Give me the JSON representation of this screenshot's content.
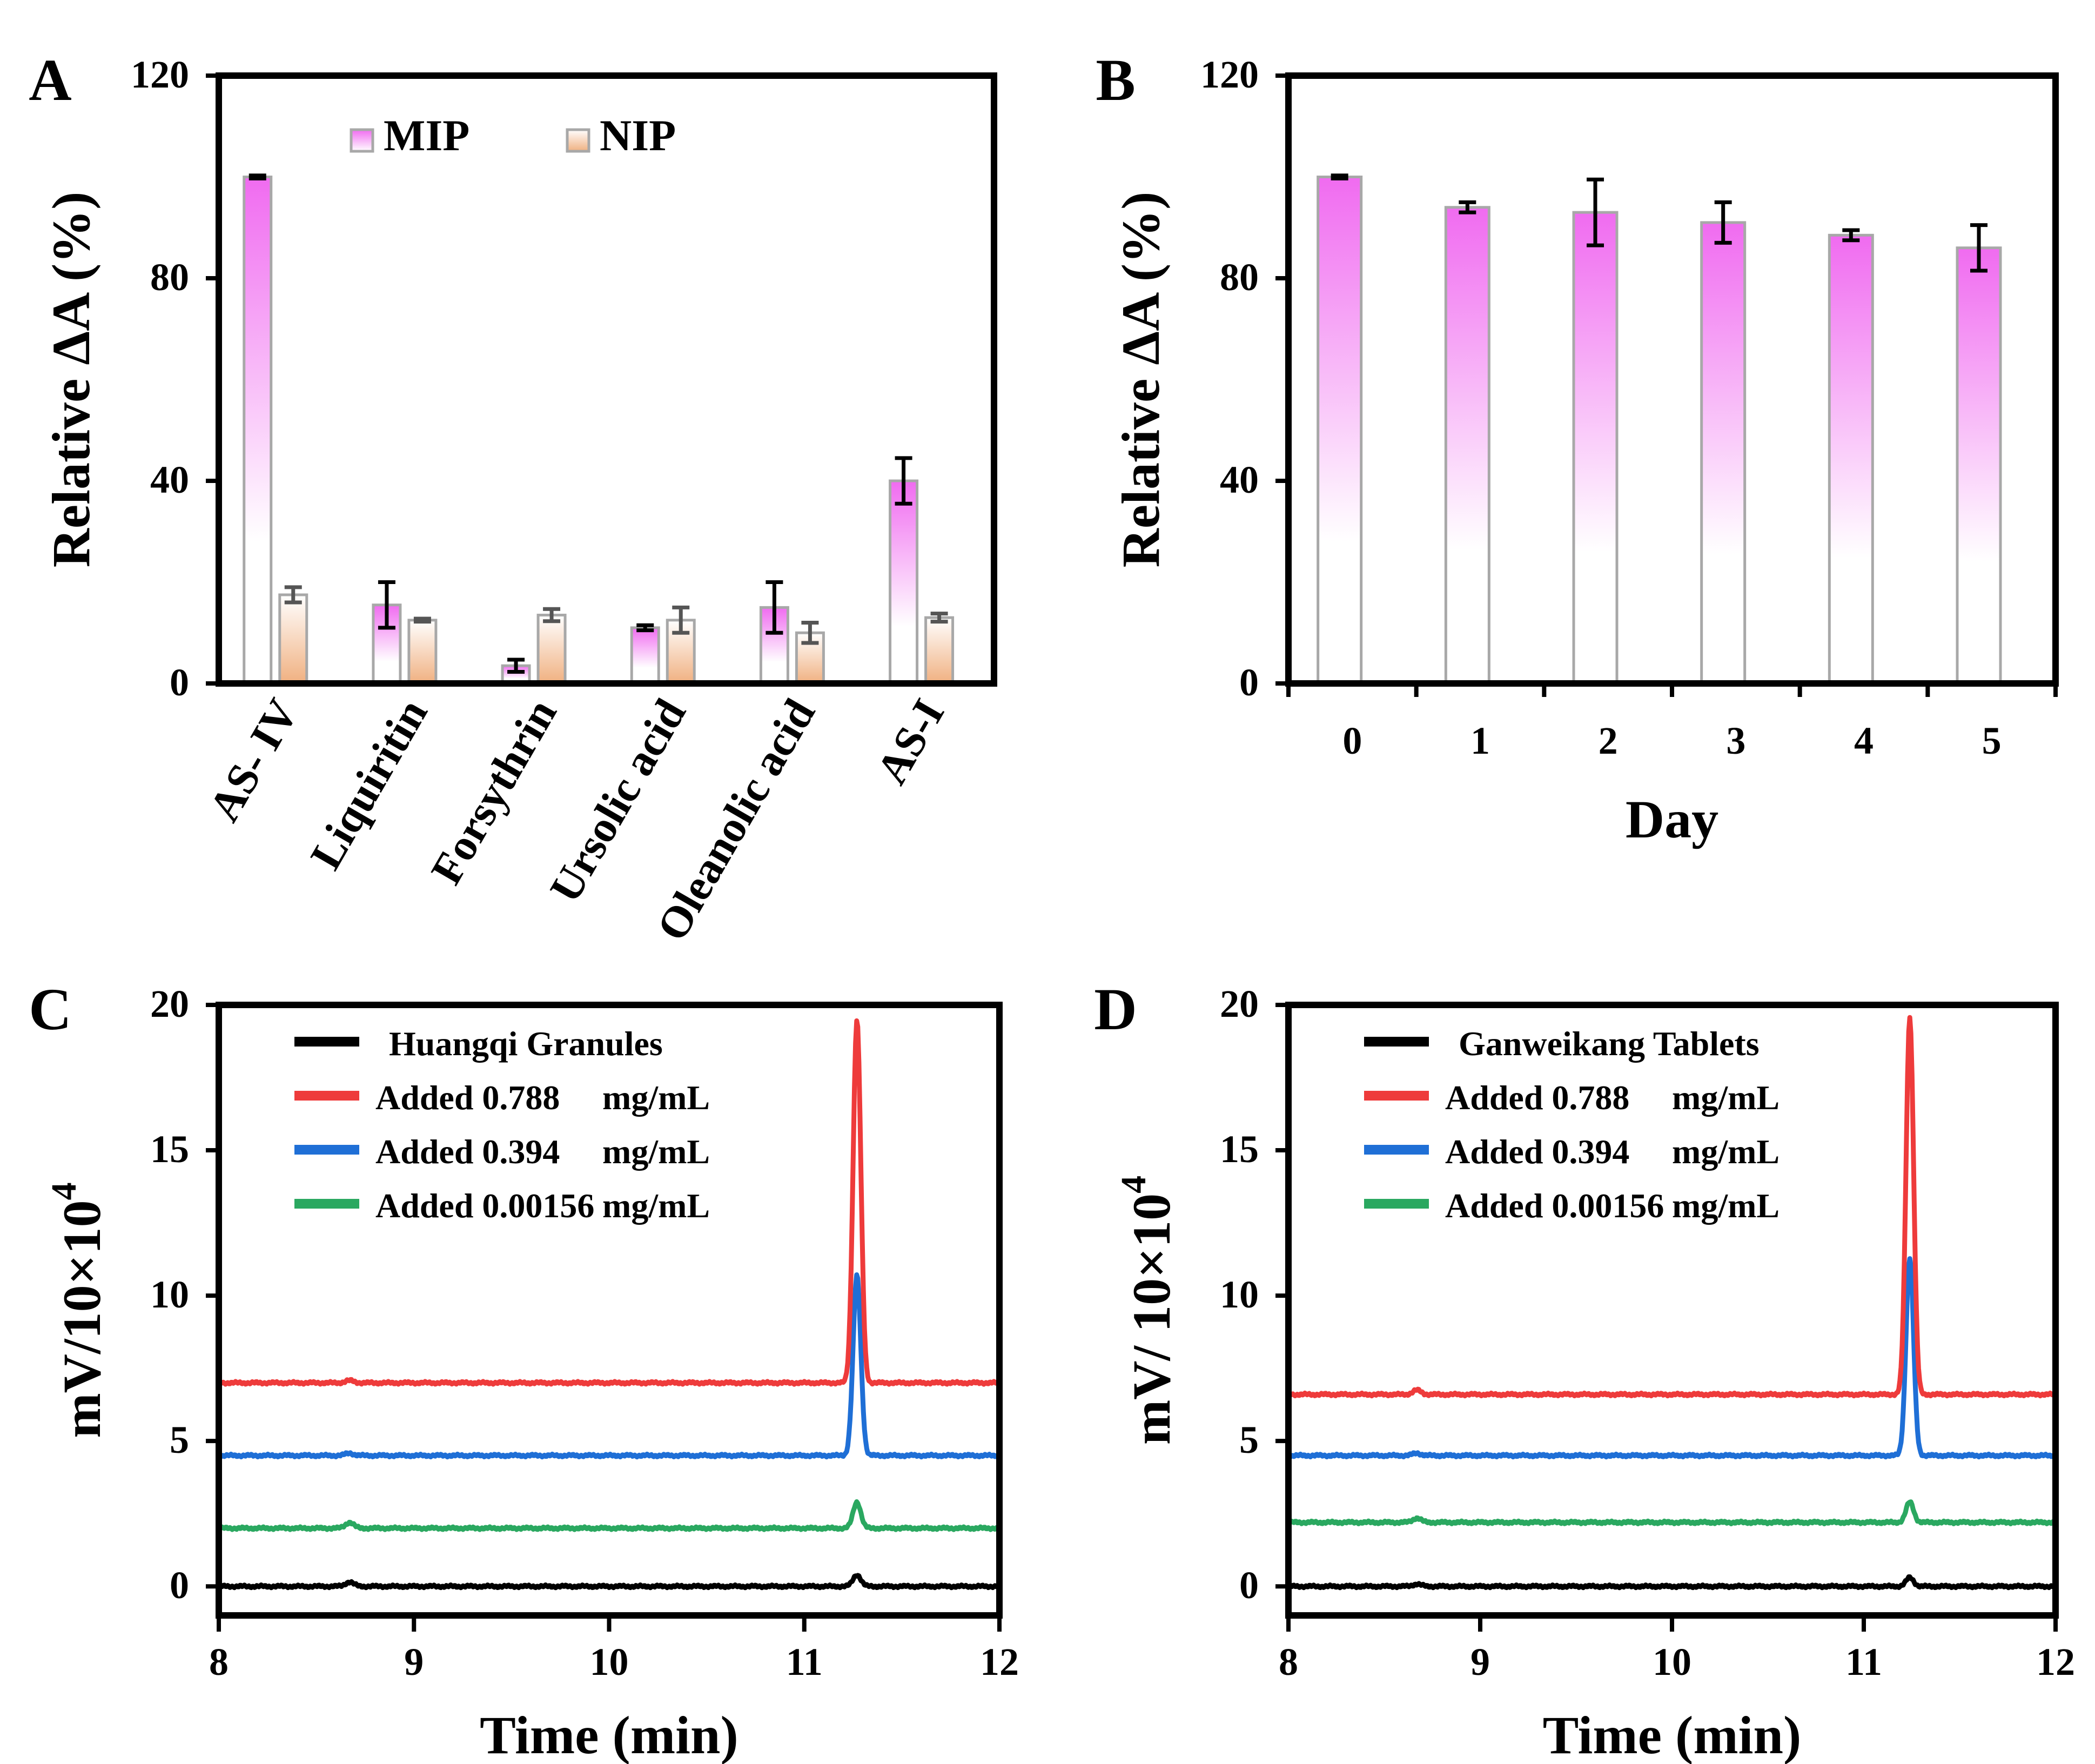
{
  "chart_data": [
    {
      "panel": "A",
      "type": "bar",
      "ylabel": "Relative ΔA (%)",
      "ylim": [
        0,
        120
      ],
      "yticks": [
        0,
        40,
        80,
        120
      ],
      "categories": [
        "AS- IV",
        "Liquiritin",
        "Forsythrin",
        "Ursolic acid",
        "Oleanolic acid",
        "AS-I"
      ],
      "series": [
        {
          "name": "MIP",
          "color": "#f06bf0",
          "values": [
            100,
            15.5,
            3.5,
            11,
            15,
            40
          ],
          "errors": [
            0.3,
            4.5,
            1.2,
            0.5,
            5,
            4.5
          ]
        },
        {
          "name": "NIP",
          "color": "#f2b98a",
          "values": [
            17.5,
            12.5,
            13.5,
            12.5,
            10,
            13
          ],
          "errors": [
            1.5,
            0.3,
            1.2,
            2.5,
            2,
            0.8
          ]
        }
      ],
      "legend_position": "top-center"
    },
    {
      "panel": "B",
      "type": "bar",
      "xlabel": "Day",
      "ylabel": "Relative ΔA (%)",
      "ylim": [
        0,
        120
      ],
      "yticks": [
        0,
        40,
        80,
        120
      ],
      "categories": [
        "0",
        "1",
        "2",
        "3",
        "4",
        "5"
      ],
      "series": [
        {
          "name": "MIP",
          "color": "#f06bf0",
          "values": [
            100,
            94,
            93,
            91,
            88.5,
            86
          ],
          "errors": [
            0.3,
            1,
            6.5,
            4,
            1,
            4.5
          ]
        }
      ]
    },
    {
      "panel": "C",
      "type": "line",
      "xlabel": "Time (min)",
      "ylabel": "mV/10×10",
      "ylabel_sup": "4",
      "xlim": [
        8,
        12
      ],
      "ylim": [
        -1,
        20
      ],
      "xticks": [
        8,
        9,
        10,
        11,
        12
      ],
      "yticks": [
        0,
        5,
        10,
        15,
        20
      ],
      "peak_time": 11.27,
      "minor_peak_time": 8.67,
      "series": [
        {
          "name": "Huangqi Granules",
          "color": "#000000",
          "baseline": 0.0,
          "peak": 0.4,
          "minor": 0.15
        },
        {
          "name": "Added 0.788",
          "unit": "mg/mL",
          "color": "#ee3b3b",
          "baseline": 7.0,
          "peak": 12.5,
          "minor": 0.08
        },
        {
          "name": "Added 0.394",
          "unit": "mg/mL",
          "color": "#1f6fd6",
          "baseline": 4.5,
          "peak": 6.2,
          "minor": 0.08
        },
        {
          "name": "Added 0.00156",
          "unit": "mg/mL",
          "color": "#2aa860",
          "baseline": 2.0,
          "peak": 0.9,
          "minor": 0.2
        }
      ],
      "legend_position": "top-left"
    },
    {
      "panel": "D",
      "type": "line",
      "xlabel": "Time (min)",
      "ylabel": "mV/ 10×10",
      "ylabel_sup": "4",
      "xlim": [
        8,
        12
      ],
      "ylim": [
        -1,
        20
      ],
      "xticks": [
        8,
        9,
        10,
        11,
        12
      ],
      "yticks": [
        0,
        5,
        10,
        15,
        20
      ],
      "peak_time": 11.24,
      "minor_peak_time": 8.67,
      "series": [
        {
          "name": "Ganweikang Tablets",
          "color": "#000000",
          "baseline": 0.0,
          "peak": 0.3,
          "minor": 0.08
        },
        {
          "name": "Added 0.788",
          "unit": "mg/mL",
          "color": "#ee3b3b",
          "baseline": 6.6,
          "peak": 13.0,
          "minor": 0.15
        },
        {
          "name": "Added 0.394",
          "unit": "mg/mL",
          "color": "#1f6fd6",
          "baseline": 4.5,
          "peak": 6.8,
          "minor": 0.08
        },
        {
          "name": "Added 0.00156",
          "unit": "mg/mL",
          "color": "#2aa860",
          "baseline": 2.2,
          "peak": 0.7,
          "minor": 0.15
        }
      ],
      "legend_position": "top-left"
    }
  ]
}
